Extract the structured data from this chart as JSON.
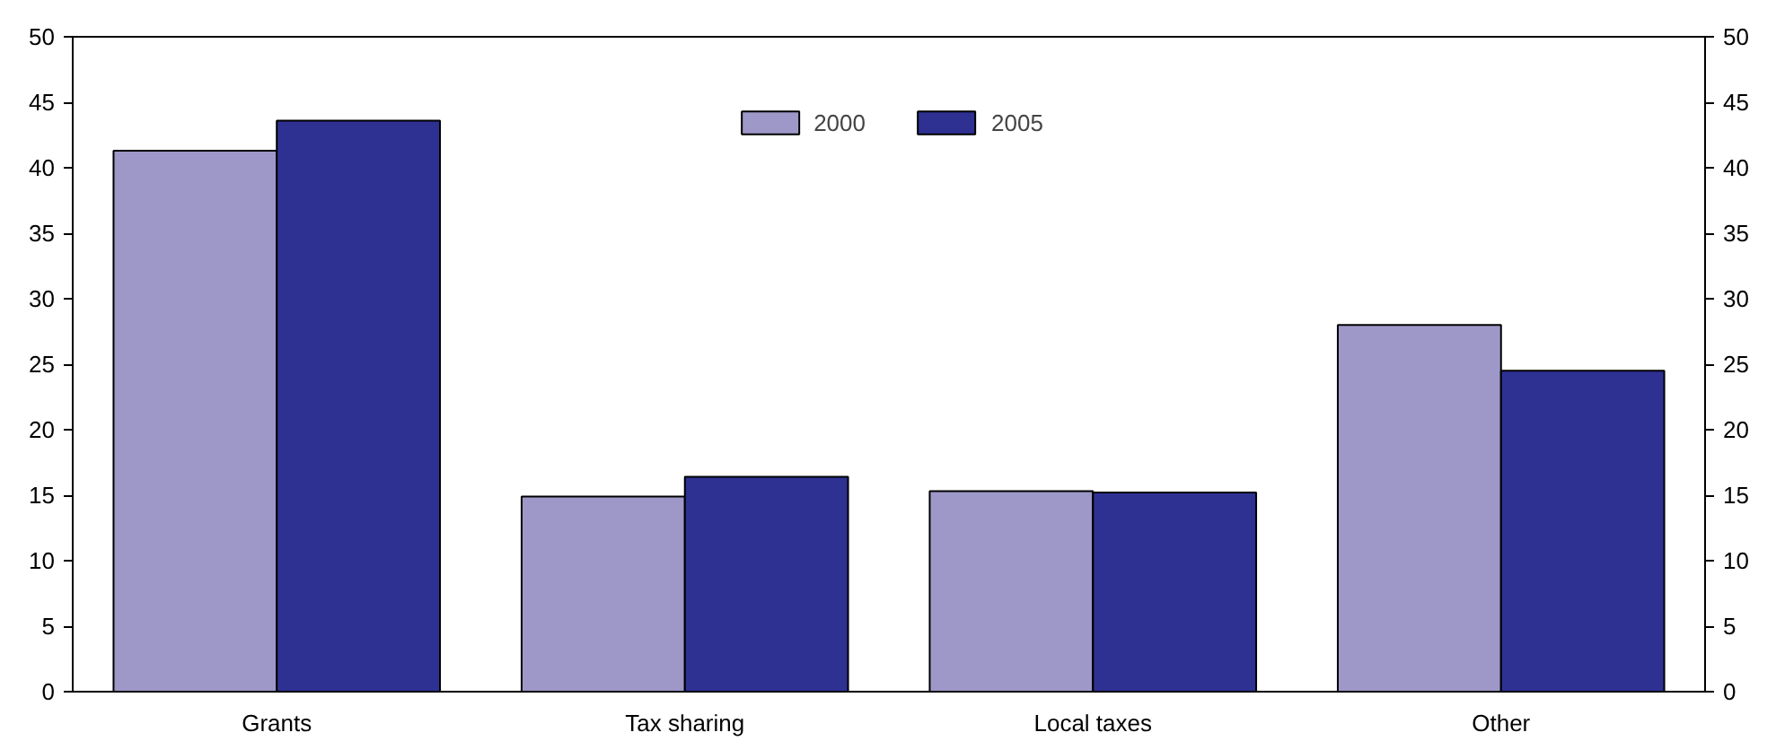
{
  "chart_data": {
    "type": "bar",
    "categories": [
      "Grants",
      "Tax sharing",
      "Local taxes",
      "Other"
    ],
    "series": [
      {
        "name": "2000",
        "color": "#9e98c9",
        "values": [
          41.3,
          14.9,
          15.3,
          28.0
        ]
      },
      {
        "name": "2005",
        "color": "#2e3192",
        "values": [
          43.6,
          16.4,
          15.2,
          24.5
        ]
      }
    ],
    "ylim": [
      0,
      50
    ],
    "yticks": [
      0,
      5,
      10,
      15,
      20,
      25,
      30,
      35,
      40,
      45,
      50
    ],
    "y2lim": [
      0,
      50
    ],
    "y2ticks": [
      0,
      5,
      10,
      15,
      20,
      25,
      30,
      35,
      40,
      45,
      50
    ],
    "grid": false,
    "legend": "top"
  }
}
